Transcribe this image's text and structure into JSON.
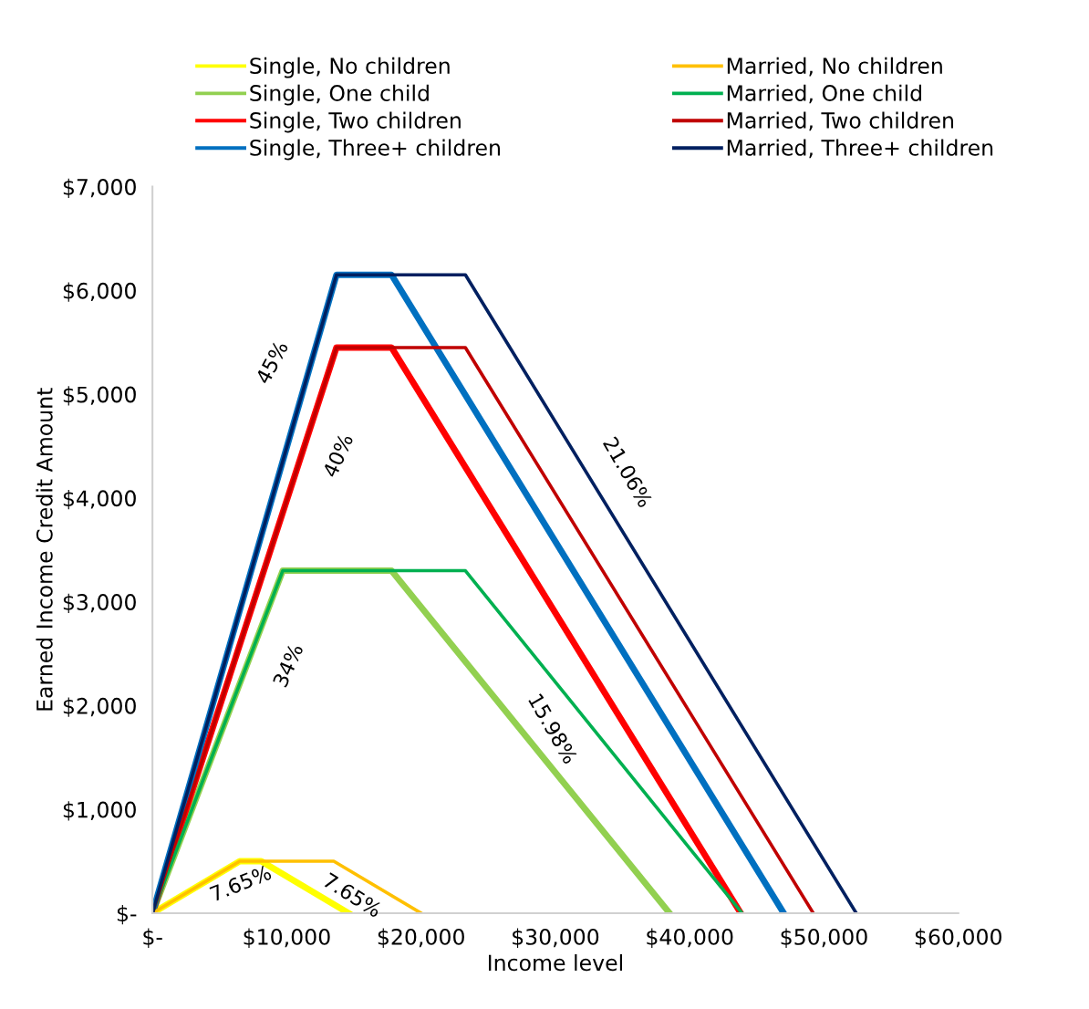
{
  "chart_data": {
    "type": "line",
    "xlabel": "Income level",
    "ylabel": "Earned Income Credit Amount",
    "xlim": [
      0,
      60000
    ],
    "xticks": [
      {
        "value": 0,
        "label": "$-"
      },
      {
        "value": 10000,
        "label": "$10,000"
      },
      {
        "value": 20000,
        "label": "$20,000"
      },
      {
        "value": 30000,
        "label": "$30,000"
      },
      {
        "value": 40000,
        "label": "$40,000"
      },
      {
        "value": 50000,
        "label": "$50,000"
      },
      {
        "value": 60000,
        "label": "$60,000"
      }
    ],
    "ylim": [
      0,
      7000
    ],
    "yticks": [
      {
        "value": 0,
        "label": "$-"
      },
      {
        "value": 1000,
        "label": "$1,000"
      },
      {
        "value": 2000,
        "label": "$2,000"
      },
      {
        "value": 3000,
        "label": "$3,000"
      },
      {
        "value": 4000,
        "label": "$4,000"
      },
      {
        "value": 5000,
        "label": "$5,000"
      },
      {
        "value": 6000,
        "label": "$6,000"
      },
      {
        "value": 7000,
        "label": "$7,000"
      }
    ],
    "grid": false,
    "legend": "top",
    "marker": "none",
    "line_style": "solid",
    "series": [
      {
        "name": "Single, No children",
        "color": "#ffff00",
        "x": [
          0,
          6500,
          8100,
          14600
        ],
        "values": [
          0,
          500,
          500,
          0
        ]
      },
      {
        "name": "Single, One child",
        "color": "#92d050",
        "x": [
          0,
          9700,
          17800,
          38500
        ],
        "values": [
          0,
          3300,
          3300,
          0
        ]
      },
      {
        "name": "Single, Two children",
        "color": "#ff0000",
        "x": [
          0,
          13700,
          17800,
          43800
        ],
        "values": [
          0,
          5450,
          5450,
          0
        ]
      },
      {
        "name": "Single, Three+ children",
        "color": "#0070c0",
        "x": [
          0,
          13700,
          17800,
          47000
        ],
        "values": [
          0,
          6150,
          6150,
          0
        ]
      },
      {
        "name": "Married, No children",
        "color": "#ffc000",
        "x": [
          0,
          6500,
          13500,
          20000
        ],
        "values": [
          0,
          500,
          500,
          0
        ]
      },
      {
        "name": "Married, One child",
        "color": "#00b050",
        "x": [
          0,
          9700,
          23300,
          43900
        ],
        "values": [
          0,
          3300,
          3300,
          0
        ]
      },
      {
        "name": "Married, Two children",
        "color": "#c00000",
        "x": [
          0,
          13700,
          23300,
          49200
        ],
        "values": [
          0,
          5450,
          5450,
          0
        ]
      },
      {
        "name": "Married, Three+ children",
        "color": "#002060",
        "x": [
          0,
          13700,
          23300,
          52400
        ],
        "values": [
          0,
          6150,
          6150,
          0
        ]
      }
    ],
    "annotations": [
      "45%",
      "40%",
      "34%",
      "21.06%",
      "15.98%",
      "7.65%",
      "7.65%"
    ]
  }
}
